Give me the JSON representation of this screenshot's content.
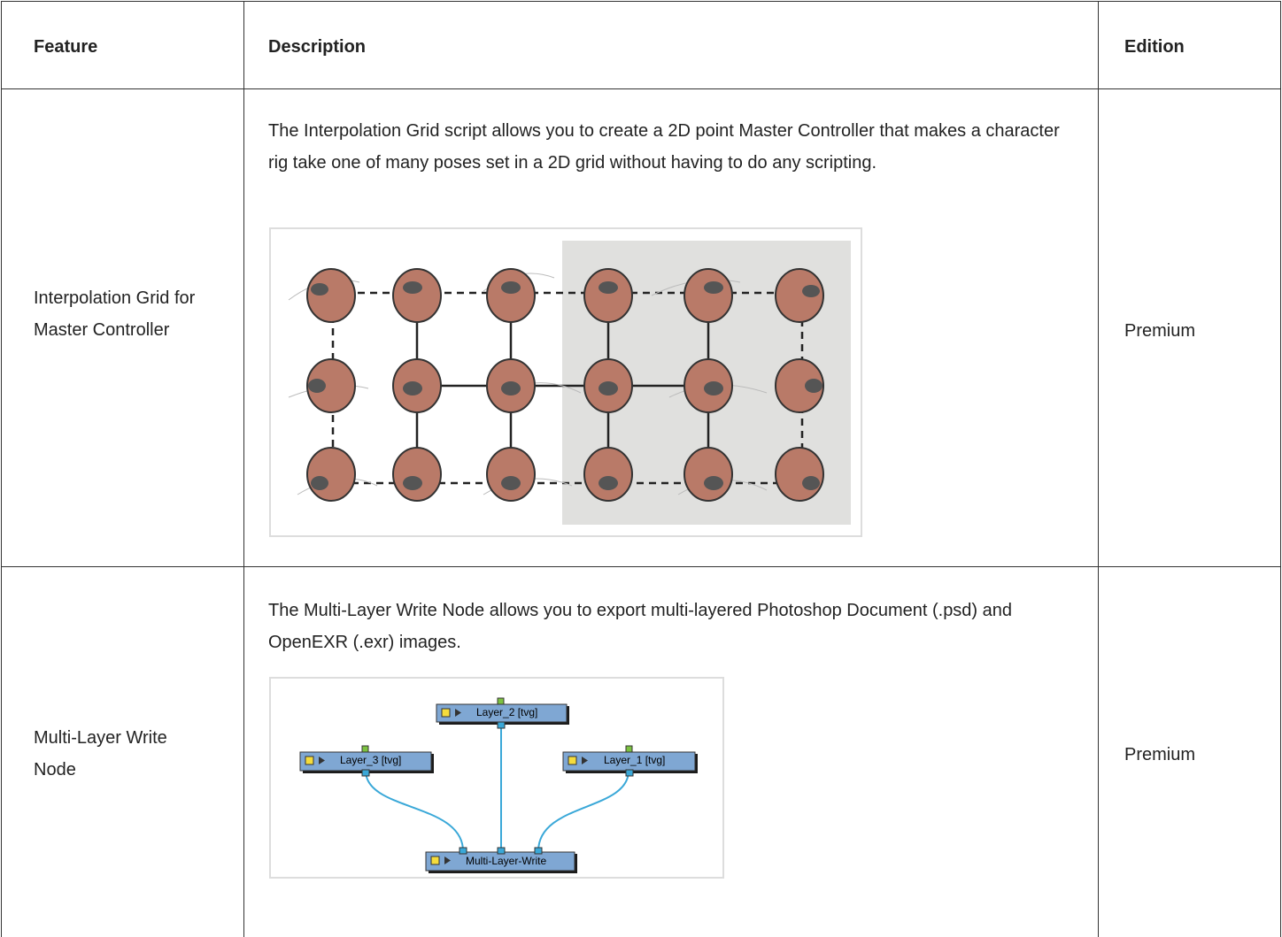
{
  "table": {
    "header": [
      "Feature",
      "Description",
      "Edition"
    ],
    "rows": [
      [
        "Interpolation Grid for Master Controller",
        "The Interpolation Grid script allows you to create a 2D point Master Controller that makes a character rig take one of many poses set in a 2D grid without having to do any scripting.",
        "Premium"
      ],
      [
        "Multi-Layer Write Node",
        "The Multi-Layer Write Node allows you to export multi-layered Photoshop Document (.psd) and OpenEXR (.exr) images.",
        "Premium"
      ]
    ]
  },
  "diagram": {
    "nodes": [
      "Layer_2  [tvg]",
      "Layer_3  [tvg]",
      "Layer_1  [tvg]",
      "Multi-Layer-Write"
    ]
  }
}
